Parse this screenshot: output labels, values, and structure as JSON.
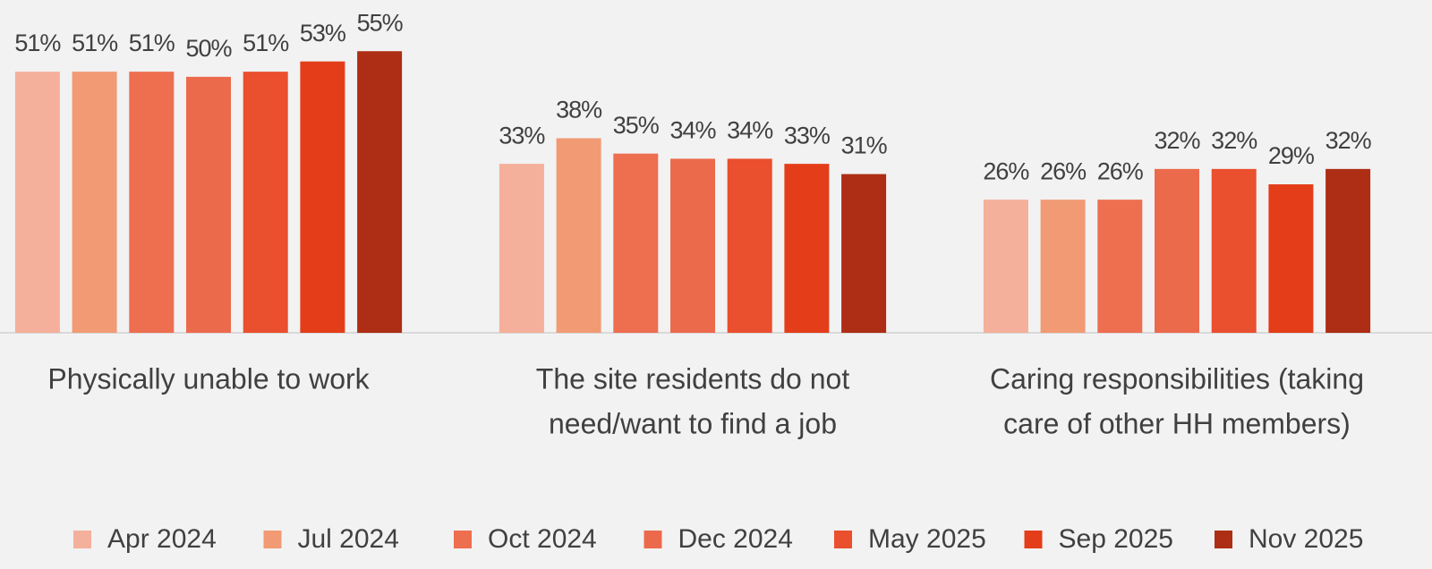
{
  "chart_data": {
    "type": "bar",
    "categories": [
      [
        "Physically unable to work"
      ],
      [
        "The site residents do not",
        "need/want to find a job"
      ],
      [
        "Caring responsibilities (taking",
        "care of other HH members)"
      ]
    ],
    "ylim": [
      0,
      65
    ],
    "series": [
      {
        "name": "Apr 2024",
        "color": "#f4b09a",
        "values": [
          51,
          33,
          26
        ],
        "value_labels": [
          "51%",
          "33%",
          "26%"
        ]
      },
      {
        "name": "Jul 2024",
        "color": "#f19a73",
        "values": [
          51,
          38,
          26
        ],
        "value_labels": [
          "51%",
          "38%",
          "26%"
        ]
      },
      {
        "name": "Oct 2024",
        "color": "#ee6e50",
        "values": [
          51,
          35,
          26
        ],
        "value_labels": [
          "51%",
          "35%",
          "26%"
        ]
      },
      {
        "name": "Dec 2024",
        "color": "#ec6a4c",
        "values": [
          50,
          34,
          32
        ],
        "value_labels": [
          "50%",
          "34%",
          "32%"
        ]
      },
      {
        "name": "May 2025",
        "color": "#ea4f2e",
        "values": [
          51,
          34,
          32
        ],
        "value_labels": [
          "51%",
          "34%",
          "32%"
        ]
      },
      {
        "name": "Sep 2025",
        "color": "#e43d1a",
        "values": [
          53,
          33,
          29
        ],
        "value_labels": [
          "53%",
          "33%",
          "29%"
        ]
      },
      {
        "name": "Nov 2025",
        "color": "#ad2e14",
        "values": [
          55,
          31,
          32
        ],
        "value_labels": [
          "55%",
          "31%",
          "32%"
        ]
      }
    ],
    "legend": "bottom"
  }
}
